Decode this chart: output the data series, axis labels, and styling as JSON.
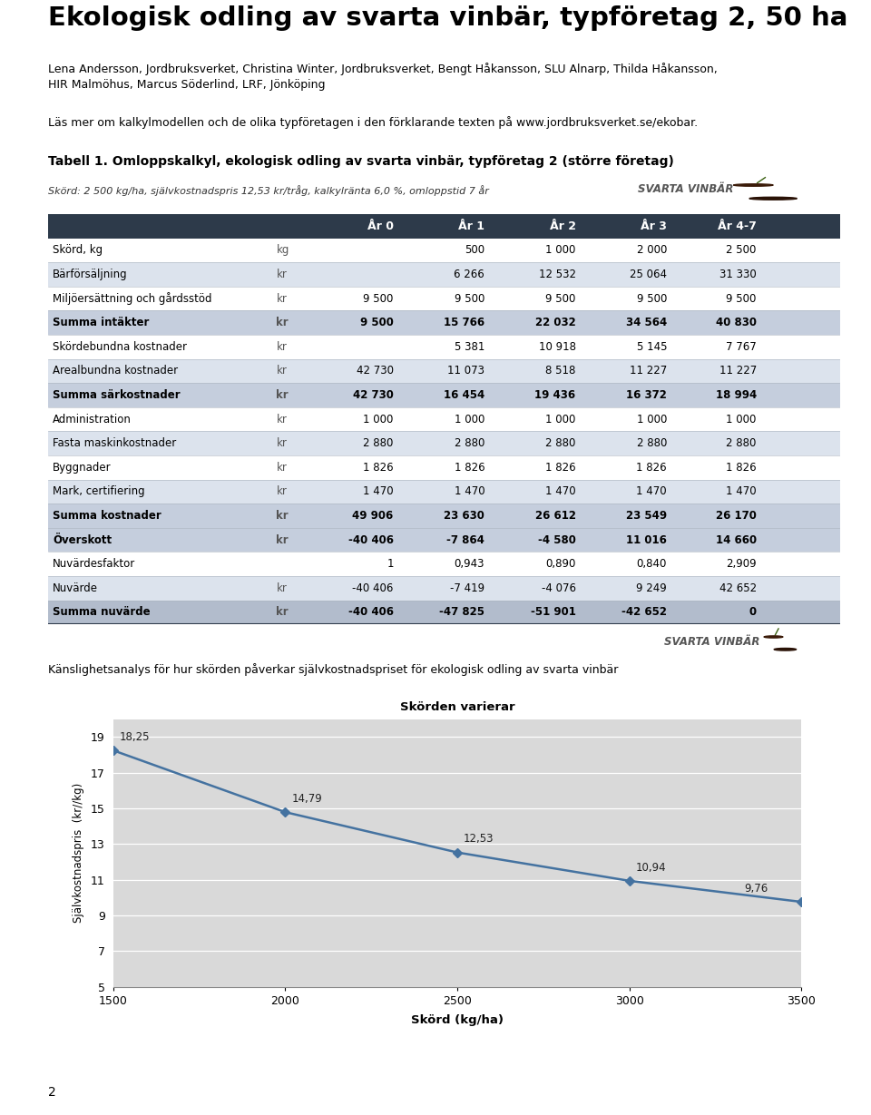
{
  "title": "Ekologisk odling av svarta vinbär, typföretag 2, 50 ha",
  "authors": "Lena Andersson, Jordbruksverket, Christina Winter, Jordbruksverket, Bengt Håkansson, SLU Alnarp, Thilda Håkansson,\nHIR Malmöhus, Marcus Söderlind, LRF, Jönköping",
  "info_text": "Läs mer om kalkylmodellen och de olika typföretagen i den förklarande texten på www.jordbruksverket.se/ekobar.",
  "table_title": "Tabell 1. Omloppskalkyl, ekologisk odling av svarta vinbär, typföretag 2 (större företag)",
  "table_subtitle": "Skörd: 2 500 kg/ha, självkostnadspris 12,53 kr/tråg, kalkylränta 6,0 %, omloppstid 7 år",
  "svarta_vinbar_label": "SVARTA VINBÄR",
  "col_headers": [
    "",
    "",
    "År 0",
    "År 1",
    "År 2",
    "År 3",
    "År 4-7"
  ],
  "header_bg": "#2d3a4a",
  "header_fg": "#ffffff",
  "rows": [
    {
      "label": "Skörd, kg",
      "unit": "kg",
      "bold": false,
      "shade": "light",
      "values": [
        "",
        "500",
        "1 000",
        "2 000",
        "2 500"
      ]
    },
    {
      "label": "Bärförsäljning",
      "unit": "kr",
      "bold": false,
      "shade": "mid",
      "values": [
        "",
        "6 266",
        "12 532",
        "25 064",
        "31 330"
      ]
    },
    {
      "label": "Miljöersättning och gårdsstöd",
      "unit": "kr",
      "bold": false,
      "shade": "light",
      "values": [
        "9 500",
        "9 500",
        "9 500",
        "9 500",
        "9 500"
      ]
    },
    {
      "label": "Summa intäkter",
      "unit": "kr",
      "bold": true,
      "shade": "bold",
      "values": [
        "9 500",
        "15 766",
        "22 032",
        "34 564",
        "40 830"
      ]
    },
    {
      "label": "Skördebundna kostnader",
      "unit": "kr",
      "bold": false,
      "shade": "light",
      "values": [
        "",
        "5 381",
        "10 918",
        "5 145",
        "7 767"
      ]
    },
    {
      "label": "Arealbundna kostnader",
      "unit": "kr",
      "bold": false,
      "shade": "mid",
      "values": [
        "42 730",
        "11 073",
        "8 518",
        "11 227",
        "11 227"
      ]
    },
    {
      "label": "Summa särkostnader",
      "unit": "kr",
      "bold": true,
      "shade": "bold",
      "values": [
        "42 730",
        "16 454",
        "19 436",
        "16 372",
        "18 994"
      ]
    },
    {
      "label": "Administration",
      "unit": "kr",
      "bold": false,
      "shade": "light",
      "values": [
        "1 000",
        "1 000",
        "1 000",
        "1 000",
        "1 000"
      ]
    },
    {
      "label": "Fasta maskinkostnader",
      "unit": "kr",
      "bold": false,
      "shade": "mid",
      "values": [
        "2 880",
        "2 880",
        "2 880",
        "2 880",
        "2 880"
      ]
    },
    {
      "label": "Byggnader",
      "unit": "kr",
      "bold": false,
      "shade": "light",
      "values": [
        "1 826",
        "1 826",
        "1 826",
        "1 826",
        "1 826"
      ]
    },
    {
      "label": "Mark, certifiering",
      "unit": "kr",
      "bold": false,
      "shade": "mid",
      "values": [
        "1 470",
        "1 470",
        "1 470",
        "1 470",
        "1 470"
      ]
    },
    {
      "label": "Summa kostnader",
      "unit": "kr",
      "bold": true,
      "shade": "bold",
      "values": [
        "49 906",
        "23 630",
        "26 612",
        "23 549",
        "26 170"
      ]
    },
    {
      "label": "Överskott",
      "unit": "kr",
      "bold": true,
      "shade": "bold",
      "values": [
        "-40 406",
        "-7 864",
        "-4 580",
        "11 016",
        "14 660"
      ]
    },
    {
      "label": "Nuvärdesfaktor",
      "unit": "",
      "bold": false,
      "shade": "light",
      "values": [
        "1",
        "0,943",
        "0,890",
        "0,840",
        "2,909"
      ]
    },
    {
      "label": "Nuvärde",
      "unit": "kr",
      "bold": false,
      "shade": "mid",
      "values": [
        "-40 406",
        "-7 419",
        "-4 076",
        "9 249",
        "42 652"
      ]
    },
    {
      "label": "Summa nuvärde",
      "unit": "kr",
      "bold": true,
      "shade": "bold_dark",
      "values": [
        "-40 406",
        "-47 825",
        "-51 901",
        "-42 652",
        "0"
      ]
    }
  ],
  "chart_section_label": "Känslighetsanalys för hur skörden påverkar självkostnadspriset för ekologisk odling av svarta vinbär",
  "chart_title": "Skörden varierar",
  "chart_xlabel": "Skörd (kg/ha)",
  "chart_ylabel": "Självkostnadspris  (kr//kg)",
  "chart_x": [
    1500,
    2000,
    2500,
    3000,
    3500
  ],
  "chart_y": [
    18.25,
    14.79,
    12.53,
    10.94,
    9.76
  ],
  "chart_point_labels": [
    "18,25",
    "14,79",
    "12,53",
    "10,94",
    "9,76"
  ],
  "chart_xlim": [
    1500,
    3500
  ],
  "chart_ylim": [
    5,
    20
  ],
  "chart_yticks": [
    5,
    7,
    9,
    11,
    13,
    15,
    17,
    19
  ],
  "chart_xticks": [
    1500,
    2000,
    2500,
    3000,
    3500
  ],
  "chart_line_color": "#4472a0",
  "chart_bg": "#d9d9d9",
  "page_bg": "#d9d9d9",
  "page_number": "2",
  "background_color": "#ffffff"
}
